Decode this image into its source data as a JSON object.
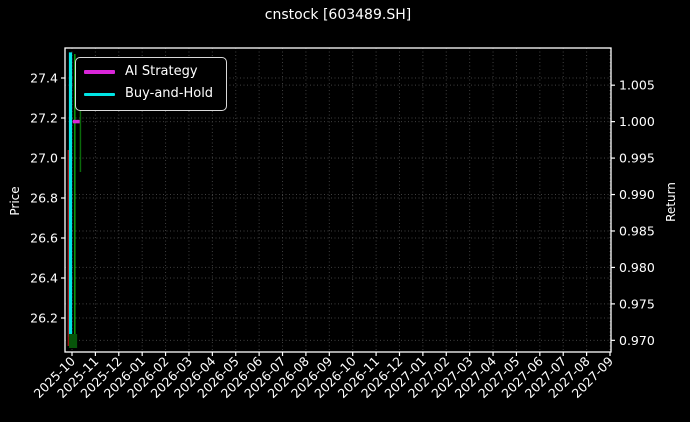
{
  "figure": {
    "title": "cnstock [603489.SH]",
    "background": "#000000",
    "text_color": "#ffffff",
    "frame_color": "#ffffff"
  },
  "legend": {
    "position": "upper left",
    "items": [
      {
        "label": "AI Strategy",
        "color": "#d926d9"
      },
      {
        "label": "Buy-and-Hold",
        "color": "#00e5e5"
      }
    ]
  },
  "chart_data": {
    "type": "line",
    "title": "cnstock [603489.SH]",
    "xlabel": "",
    "grid": {
      "visible": true,
      "style": "dotted",
      "color": "#404040"
    },
    "legend_position": "upper left",
    "background": "#000000",
    "left_axis": {
      "label": "Price",
      "tick_values": [
        27.4,
        27.2,
        27.0,
        26.8,
        26.6,
        26.4,
        26.2
      ],
      "tick_labels": [
        "27.4",
        "27.2",
        "27.0",
        "26.8",
        "26.6",
        "26.4",
        "26.2"
      ],
      "ylim": [
        26.03,
        27.55
      ]
    },
    "right_axis": {
      "label": "Return",
      "tick_values": [
        1.005,
        1.0,
        0.995,
        0.99,
        0.985,
        0.98,
        0.975,
        0.97
      ],
      "tick_labels": [
        "1.005",
        "1.000",
        "0.995",
        "0.990",
        "0.985",
        "0.980",
        "0.975",
        "0.970"
      ],
      "ylim": [
        0.9684,
        1.0101
      ]
    },
    "x_axis": {
      "rotation": 45,
      "tick_labels": [
        "2025-10",
        "2025-11",
        "2025-12",
        "2026-01",
        "2026-02",
        "2026-03",
        "2026-04",
        "2026-05",
        "2026-06",
        "2026-07",
        "2026-08",
        "2026-09",
        "2026-10",
        "2026-11",
        "2026-12",
        "2027-01",
        "2027-02",
        "2027-03",
        "2027-04",
        "2027-05",
        "2027-06",
        "2027-07",
        "2027-08",
        "2027-09"
      ]
    },
    "series": [
      {
        "name": "AI Strategy",
        "axis": "right",
        "color": "#d926d9",
        "linewidth": 3.5,
        "points": [
          {
            "x_month": 0,
            "x_day_frac": 0.04,
            "value": 1.0
          },
          {
            "x_month": 0,
            "x_day_frac": 0.33,
            "value": 1.0
          }
        ],
        "note": "flat at return 1.000, visible only as a short segment at chart start (Oct 2025)"
      },
      {
        "name": "Buy-and-Hold",
        "axis": "right",
        "color": "#00e5e5",
        "linewidth": 3.2,
        "points": [
          {
            "x_month": 0,
            "x_day_frac": -0.065,
            "value": 1.0095
          },
          {
            "x_month": 0,
            "x_day_frac": -0.065,
            "value": 0.9705
          }
        ],
        "note": "near-vertical drop from ~1.010 to ~0.970 compressed at chart start (Oct 2025); rest of axis range is empty"
      }
    ],
    "candlestick_cluster": {
      "x_month": "2025-10",
      "colors": {
        "up": "#0c9b0c",
        "up_dark": "#0a6a0a",
        "down": "#a31414",
        "body": "#07550a"
      },
      "elements": [
        {
          "kind": "wick",
          "role": "down",
          "x_frac": -0.155,
          "high": 27.04,
          "low": 26.06
        },
        {
          "kind": "wick",
          "role": "up",
          "x_frac": 0.12,
          "high": 27.52,
          "low": 26.05
        },
        {
          "kind": "wick",
          "role": "up_dark",
          "x_frac": 0.36,
          "high": 27.25,
          "low": 26.93
        },
        {
          "kind": "body",
          "role": "body",
          "x_frac_from": -0.13,
          "x_frac_to": 0.22,
          "top": 26.12,
          "bottom": 26.05
        }
      ]
    }
  }
}
